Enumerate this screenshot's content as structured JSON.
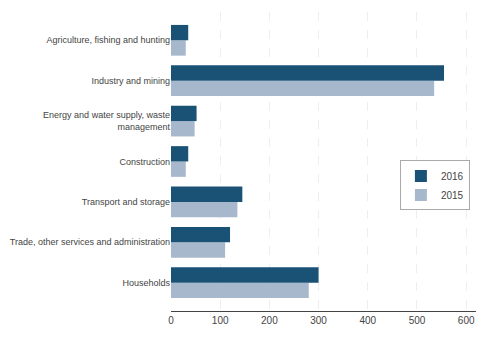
{
  "chart_data": {
    "type": "bar",
    "orientation": "horizontal",
    "categories": [
      "Households",
      "Trade, other services and administration",
      "Transport and storage",
      "Construction",
      "Energy and water supply, waste\nmanagement",
      "Industry and mining",
      "Agriculture, fishing and hunting"
    ],
    "series": [
      {
        "name": "2016",
        "color": "#1a5276",
        "values": [
          300,
          120,
          145,
          35,
          52,
          555,
          35
        ]
      },
      {
        "name": "2015",
        "color": "#a8b8cc",
        "values": [
          280,
          110,
          135,
          30,
          48,
          535,
          30
        ]
      }
    ],
    "xlim": [
      0,
      620
    ],
    "xticks": [
      0,
      100,
      200,
      300,
      400,
      500,
      600
    ],
    "grid": true,
    "legend": "right"
  }
}
